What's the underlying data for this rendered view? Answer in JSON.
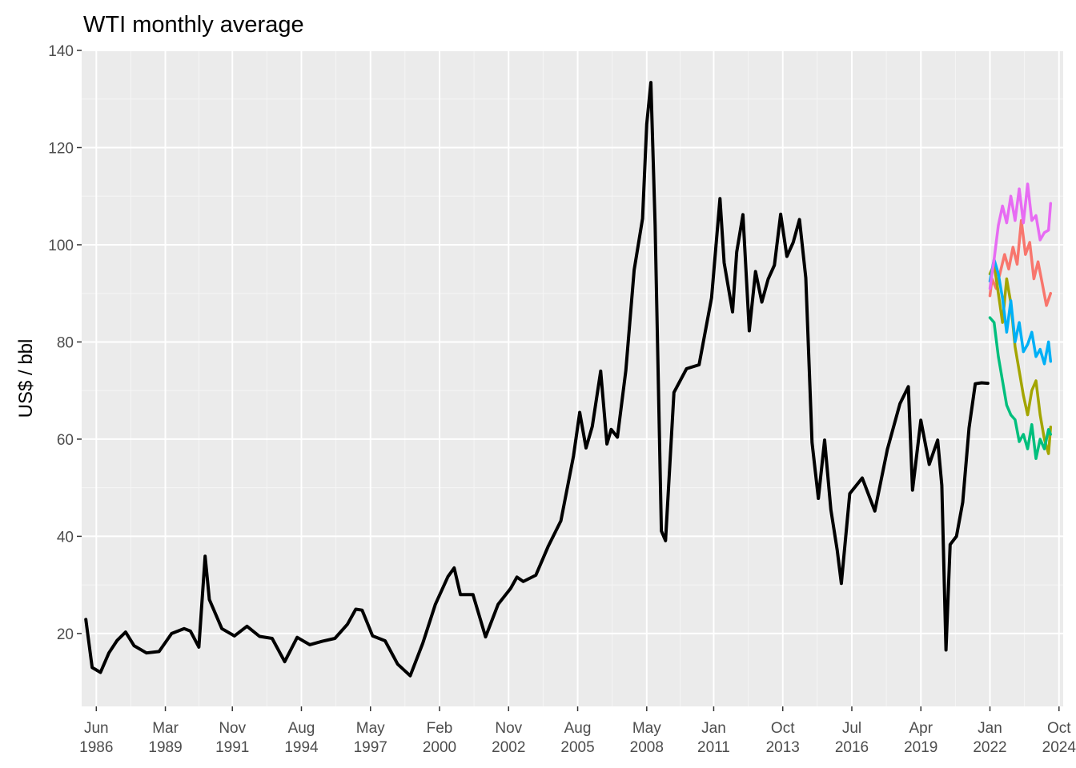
{
  "chart_data": {
    "type": "line",
    "title": "WTI monthly average",
    "xlabel": "",
    "ylabel": "US$ / bbl",
    "ylim": [
      5,
      140
    ],
    "xlim": [
      "1985-11",
      "2024-12"
    ],
    "grid": true,
    "legend": "none",
    "y_ticks": [
      20,
      40,
      60,
      80,
      100,
      120,
      140
    ],
    "x_ticks": [
      {
        "date": "1986-06",
        "month": "Jun",
        "year": "1986"
      },
      {
        "date": "1989-03",
        "month": "Mar",
        "year": "1989"
      },
      {
        "date": "1991-11",
        "month": "Nov",
        "year": "1991"
      },
      {
        "date": "1994-08",
        "month": "Aug",
        "year": "1994"
      },
      {
        "date": "1997-05",
        "month": "May",
        "year": "1997"
      },
      {
        "date": "2000-02",
        "month": "Feb",
        "year": "2000"
      },
      {
        "date": "2002-11",
        "month": "Nov",
        "year": "2002"
      },
      {
        "date": "2005-08",
        "month": "Aug",
        "year": "2005"
      },
      {
        "date": "2008-05",
        "month": "May",
        "year": "2008"
      },
      {
        "date": "2011-01",
        "month": "Jan",
        "year": "2011"
      },
      {
        "date": "2013-10",
        "month": "Oct",
        "year": "2013"
      },
      {
        "date": "2016-07",
        "month": "Jul",
        "year": "2016"
      },
      {
        "date": "2019-04",
        "month": "Apr",
        "year": "2019"
      },
      {
        "date": "2022-01",
        "month": "Jan",
        "year": "2022"
      },
      {
        "date": "2024-10",
        "month": "Oct",
        "year": "2024"
      }
    ],
    "series": [
      {
        "color": "#000000",
        "x": [
          "1986-01",
          "1986-04",
          "1986-08",
          "1986-12",
          "1987-04",
          "1987-08",
          "1987-12",
          "1988-06",
          "1988-12",
          "1989-06",
          "1989-12",
          "1990-03",
          "1990-07",
          "1990-10",
          "1990-12",
          "1991-06",
          "1991-12",
          "1992-06",
          "1992-12",
          "1993-06",
          "1993-12",
          "1994-06",
          "1994-12",
          "1995-06",
          "1995-12",
          "1996-06",
          "1996-10",
          "1997-01",
          "1997-06",
          "1997-12",
          "1998-06",
          "1998-12",
          "1999-06",
          "1999-12",
          "2000-06",
          "2000-09",
          "2000-12",
          "2001-06",
          "2001-12",
          "2002-06",
          "2002-12",
          "2003-03",
          "2003-06",
          "2003-12",
          "2004-06",
          "2004-12",
          "2005-06",
          "2005-09",
          "2005-12",
          "2006-03",
          "2006-07",
          "2006-10",
          "2006-12",
          "2007-03",
          "2007-07",
          "2007-11",
          "2008-03",
          "2008-05",
          "2008-07",
          "2008-09",
          "2008-12",
          "2009-02",
          "2009-06",
          "2009-12",
          "2010-06",
          "2010-12",
          "2011-04",
          "2011-06",
          "2011-10",
          "2011-12",
          "2012-03",
          "2012-06",
          "2012-09",
          "2012-12",
          "2013-03",
          "2013-06",
          "2013-09",
          "2013-12",
          "2014-03",
          "2014-06",
          "2014-09",
          "2014-12",
          "2015-03",
          "2015-06",
          "2015-09",
          "2015-12",
          "2016-02",
          "2016-06",
          "2016-12",
          "2017-06",
          "2017-12",
          "2018-06",
          "2018-10",
          "2018-12",
          "2019-04",
          "2019-08",
          "2019-12",
          "2020-02",
          "2020-04",
          "2020-06",
          "2020-09",
          "2020-12",
          "2021-03",
          "2021-06",
          "2021-09",
          "2021-12"
        ],
        "values": [
          22.9,
          13.0,
          12.0,
          16.0,
          18.6,
          20.3,
          17.5,
          16.0,
          16.3,
          20.0,
          21.0,
          20.5,
          17.2,
          35.9,
          27.0,
          21.0,
          19.5,
          21.5,
          19.4,
          19.0,
          14.2,
          19.2,
          17.7,
          18.4,
          19.0,
          21.9,
          25.0,
          24.8,
          19.5,
          18.5,
          13.7,
          11.3,
          18.0,
          26.0,
          31.7,
          33.5,
          28.0,
          28.0,
          19.3,
          26.0,
          29.3,
          31.6,
          30.7,
          32.0,
          38.0,
          43.2,
          56.5,
          65.5,
          58.2,
          62.6,
          74.0,
          59.0,
          62.0,
          60.4,
          74.1,
          94.8,
          105.4,
          124.8,
          133.4,
          104.0,
          41.1,
          39.1,
          69.6,
          74.5,
          75.3,
          89.1,
          109.5,
          96.3,
          86.2,
          98.5,
          106.2,
          82.3,
          94.5,
          88.2,
          92.9,
          95.8,
          106.3,
          97.6,
          100.5,
          105.2,
          93.2,
          59.3,
          47.8,
          59.8,
          45.5,
          37.2,
          30.3,
          48.8,
          52.0,
          45.2,
          57.9,
          67.3,
          70.8,
          49.5,
          63.9,
          54.8,
          59.8,
          50.5,
          16.6,
          38.3,
          40.0,
          47.0,
          62.3,
          71.4,
          71.6,
          71.5
        ]
      },
      {
        "color": "#F8766D",
        "x": [
          "2022-01",
          "2022-02",
          "2022-04",
          "2022-06",
          "2022-08",
          "2022-10",
          "2022-12",
          "2023-02",
          "2023-04",
          "2023-06",
          "2023-08",
          "2023-10",
          "2023-12",
          "2024-02",
          "2024-04",
          "2024-06"
        ],
        "values": [
          89.5,
          93.0,
          91.0,
          94.5,
          98.0,
          95.0,
          99.5,
          96.0,
          105.0,
          98.0,
          100.5,
          93.0,
          96.5,
          92.0,
          87.5,
          90.0
        ]
      },
      {
        "color": "#A3A500",
        "x": [
          "2022-01",
          "2022-03",
          "2022-05",
          "2022-07",
          "2022-09",
          "2022-11",
          "2023-01",
          "2023-03",
          "2023-05",
          "2023-07",
          "2023-09",
          "2023-11",
          "2024-01",
          "2024-03",
          "2024-05",
          "2024-06"
        ],
        "values": [
          94.0,
          96.0,
          90.0,
          84.0,
          93.0,
          88.0,
          79.0,
          74.0,
          69.0,
          65.0,
          70.0,
          72.0,
          65.0,
          60.0,
          57.0,
          62.5
        ]
      },
      {
        "color": "#00BF7D",
        "x": [
          "2022-01",
          "2022-03",
          "2022-05",
          "2022-07",
          "2022-09",
          "2022-11",
          "2023-01",
          "2023-03",
          "2023-05",
          "2023-07",
          "2023-09",
          "2023-11",
          "2024-01",
          "2024-03",
          "2024-05",
          "2024-06"
        ],
        "values": [
          85.0,
          84.0,
          77.0,
          72.0,
          67.0,
          65.0,
          64.0,
          59.5,
          61.0,
          58.0,
          63.0,
          56.0,
          60.0,
          58.0,
          62.0,
          61.0
        ]
      },
      {
        "color": "#00B0F6",
        "x": [
          "2022-01",
          "2022-03",
          "2022-05",
          "2022-07",
          "2022-09",
          "2022-11",
          "2023-01",
          "2023-03",
          "2023-05",
          "2023-07",
          "2023-09",
          "2023-11",
          "2024-01",
          "2024-03",
          "2024-05",
          "2024-06"
        ],
        "values": [
          92.5,
          97.0,
          94.0,
          89.0,
          82.0,
          88.5,
          80.0,
          84.0,
          78.0,
          79.5,
          82.0,
          77.0,
          78.5,
          75.5,
          80.0,
          76.0
        ]
      },
      {
        "color": "#E76BF3",
        "x": [
          "2022-01",
          "2022-03",
          "2022-05",
          "2022-07",
          "2022-09",
          "2022-11",
          "2023-01",
          "2023-03",
          "2023-05",
          "2023-07",
          "2023-09",
          "2023-11",
          "2024-01",
          "2024-03",
          "2024-05",
          "2024-06"
        ],
        "values": [
          91.0,
          97.0,
          104.0,
          108.0,
          104.5,
          110.0,
          105.0,
          111.5,
          104.5,
          112.5,
          105.0,
          106.0,
          101.0,
          102.5,
          103.0,
          108.5
        ]
      }
    ]
  }
}
